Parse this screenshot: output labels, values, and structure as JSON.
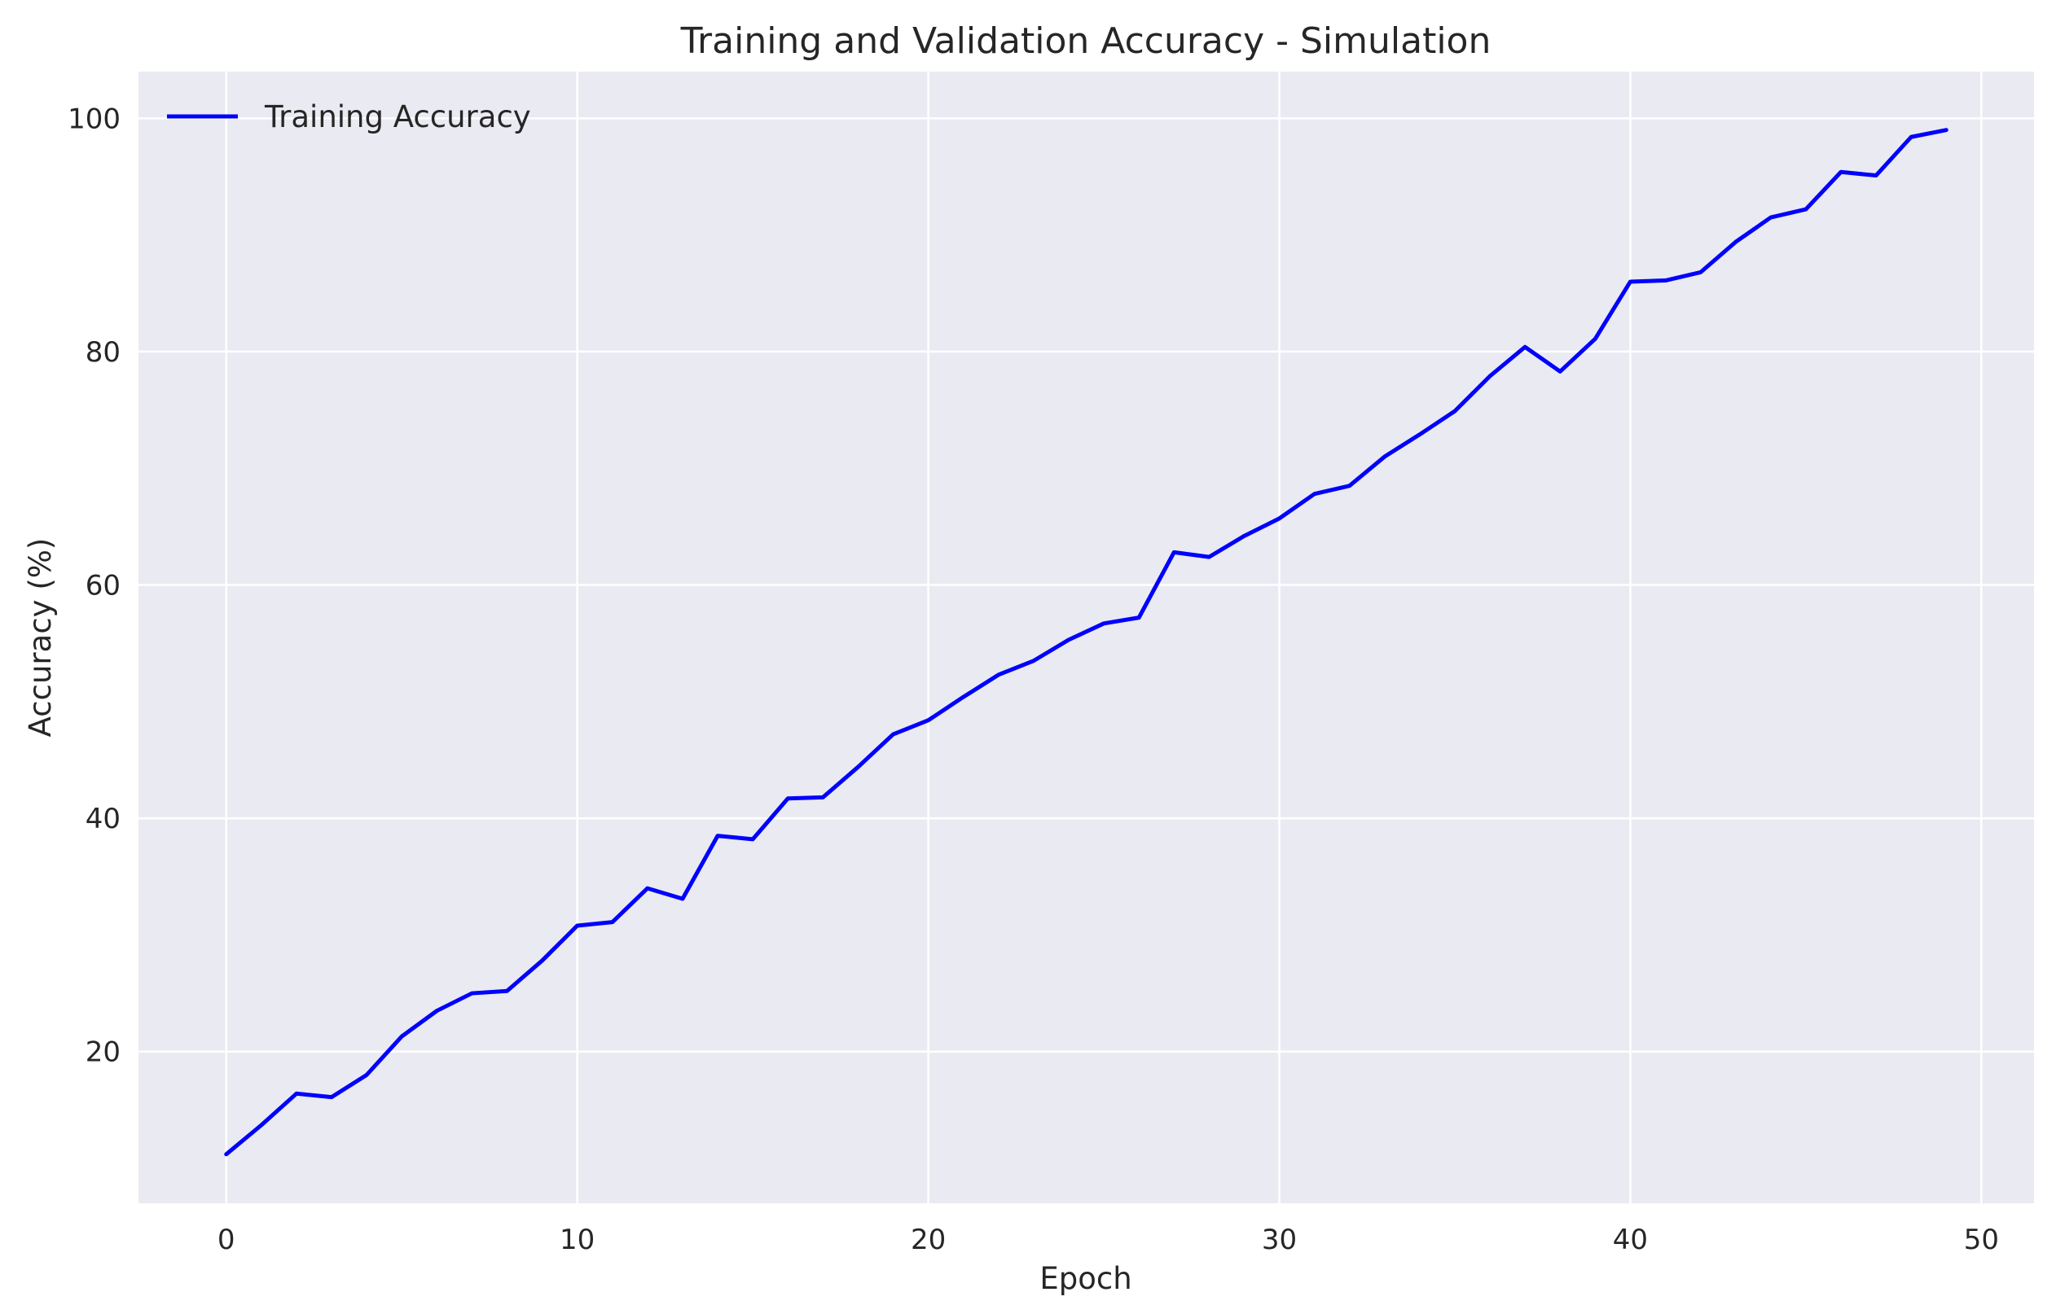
{
  "colors": {
    "plot_background": "#EAEAF2",
    "grid": "#FFFFFF",
    "line": "#0000FF",
    "text": "#262626"
  },
  "chart_data": {
    "type": "line",
    "title": "Training and Validation Accuracy - Simulation",
    "xlabel": "Epoch",
    "ylabel": "Accuracy (%)",
    "xlim": [
      -2.5,
      51.5
    ],
    "ylim": [
      7,
      104
    ],
    "xticks": [
      0,
      10,
      20,
      30,
      40,
      50
    ],
    "yticks": [
      20,
      40,
      60,
      80,
      100
    ],
    "grid": true,
    "legend": "top-left",
    "series": [
      {
        "name": "Training Accuracy",
        "color": "#0000FF",
        "x": [
          0,
          1,
          2,
          3,
          4,
          5,
          6,
          7,
          8,
          9,
          10,
          11,
          12,
          13,
          14,
          15,
          16,
          17,
          18,
          19,
          20,
          21,
          22,
          23,
          24,
          25,
          26,
          27,
          28,
          29,
          30,
          31,
          32,
          33,
          34,
          35,
          36,
          37,
          38,
          39,
          40,
          41,
          42,
          43,
          44,
          45,
          46,
          47,
          48,
          49
        ],
        "values": [
          11.2,
          13.7,
          16.4,
          16.1,
          18.0,
          21.3,
          23.5,
          25.0,
          25.2,
          27.8,
          30.8,
          31.1,
          34.0,
          33.1,
          38.5,
          38.2,
          41.7,
          41.8,
          44.4,
          47.2,
          48.4,
          50.4,
          52.3,
          53.5,
          55.3,
          56.7,
          57.2,
          62.8,
          62.4,
          64.2,
          65.7,
          67.8,
          68.5,
          71.0,
          72.9,
          74.9,
          77.9,
          80.4,
          78.3,
          81.1,
          86.0,
          86.1,
          86.8,
          89.4,
          91.5,
          92.2,
          95.4,
          95.1,
          98.4,
          99.0
        ]
      }
    ]
  }
}
